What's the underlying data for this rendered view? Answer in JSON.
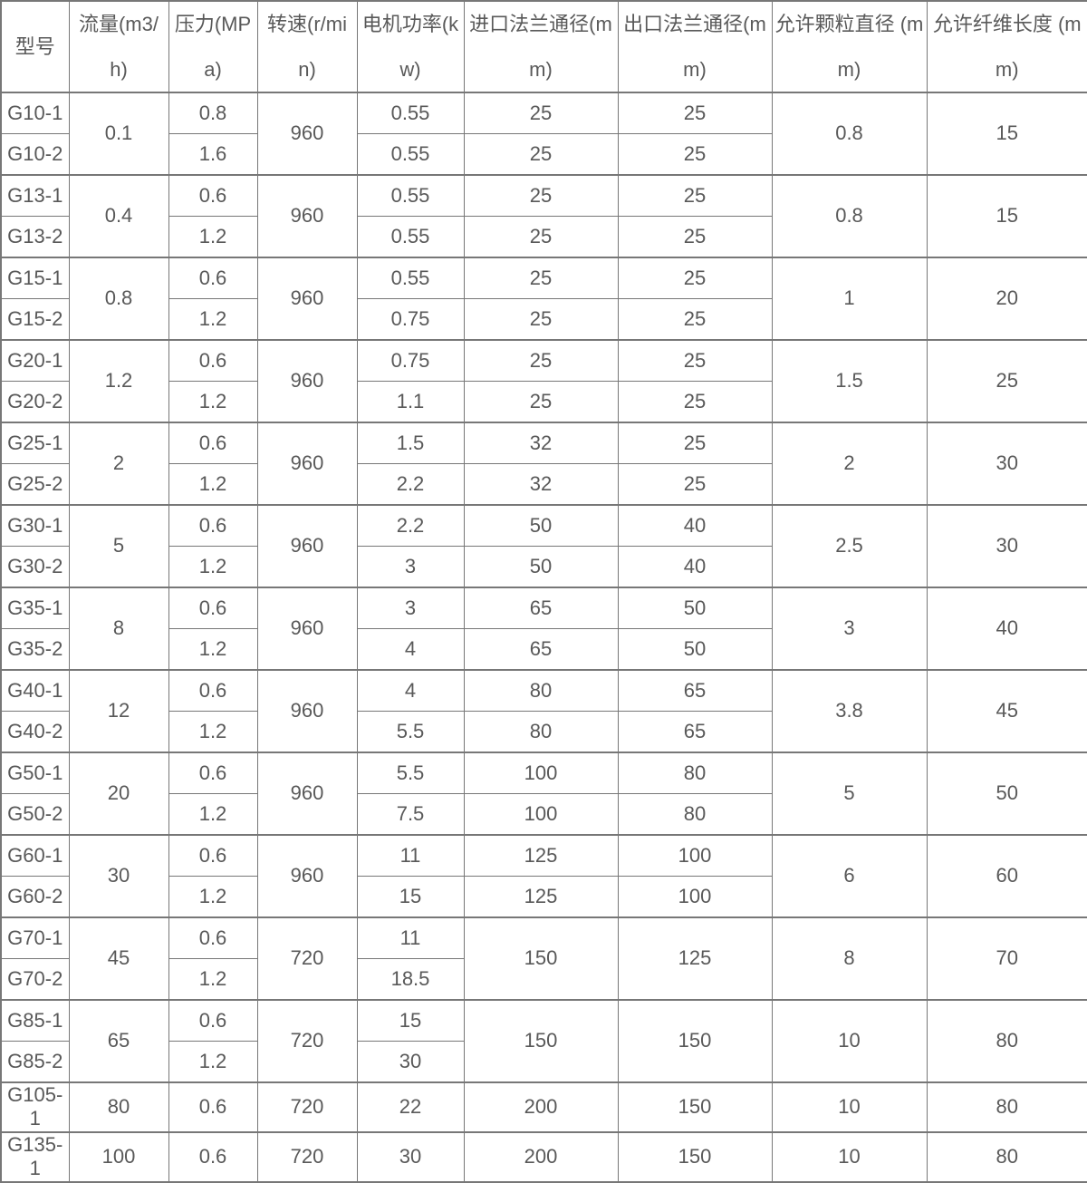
{
  "table": {
    "title": "pump-specification-table",
    "columns": [
      "型号",
      "流量(m3/h)",
      "压力(MPa)",
      "转速(r/min)",
      "电机功率(kw)",
      "进口法兰通径(mm)",
      "出口法兰通径(mm)",
      "允许颗粒直径 (mm)",
      "允许纤维长度 (mm)"
    ],
    "rows": [
      {
        "g": true,
        "cells": [
          {
            "t": "G10-1"
          },
          {
            "t": "0.1",
            "rs": 2
          },
          {
            "t": "0.8"
          },
          {
            "t": "960",
            "rs": 2
          },
          {
            "t": "0.55"
          },
          {
            "t": "25"
          },
          {
            "t": "25"
          },
          {
            "t": "0.8",
            "rs": 2
          },
          {
            "t": "15",
            "rs": 2
          }
        ]
      },
      {
        "g": false,
        "cells": [
          {
            "t": "G10-2"
          },
          {
            "t": "1.6"
          },
          {
            "t": "0.55"
          },
          {
            "t": "25"
          },
          {
            "t": "25"
          }
        ]
      },
      {
        "g": true,
        "cells": [
          {
            "t": "G13-1"
          },
          {
            "t": "0.4",
            "rs": 2
          },
          {
            "t": "0.6"
          },
          {
            "t": "960",
            "rs": 2
          },
          {
            "t": "0.55"
          },
          {
            "t": "25"
          },
          {
            "t": "25"
          },
          {
            "t": "0.8",
            "rs": 2
          },
          {
            "t": "15",
            "rs": 2
          }
        ]
      },
      {
        "g": false,
        "cells": [
          {
            "t": "G13-2"
          },
          {
            "t": "1.2"
          },
          {
            "t": "0.55"
          },
          {
            "t": "25"
          },
          {
            "t": "25"
          }
        ]
      },
      {
        "g": true,
        "cells": [
          {
            "t": "G15-1"
          },
          {
            "t": "0.8",
            "rs": 2
          },
          {
            "t": "0.6"
          },
          {
            "t": "960",
            "rs": 2
          },
          {
            "t": "0.55"
          },
          {
            "t": "25"
          },
          {
            "t": "25"
          },
          {
            "t": "1",
            "rs": 2
          },
          {
            "t": "20",
            "rs": 2
          }
        ]
      },
      {
        "g": false,
        "cells": [
          {
            "t": "G15-2"
          },
          {
            "t": "1.2"
          },
          {
            "t": "0.75"
          },
          {
            "t": "25"
          },
          {
            "t": "25"
          }
        ]
      },
      {
        "g": true,
        "cells": [
          {
            "t": "G20-1"
          },
          {
            "t": "1.2",
            "rs": 2
          },
          {
            "t": "0.6"
          },
          {
            "t": "960",
            "rs": 2
          },
          {
            "t": "0.75"
          },
          {
            "t": "25"
          },
          {
            "t": "25"
          },
          {
            "t": "1.5",
            "rs": 2
          },
          {
            "t": "25",
            "rs": 2
          }
        ]
      },
      {
        "g": false,
        "cells": [
          {
            "t": "G20-2"
          },
          {
            "t": "1.2"
          },
          {
            "t": "1.1"
          },
          {
            "t": "25"
          },
          {
            "t": "25"
          }
        ]
      },
      {
        "g": true,
        "cells": [
          {
            "t": "G25-1"
          },
          {
            "t": "2",
            "rs": 2
          },
          {
            "t": "0.6"
          },
          {
            "t": "960",
            "rs": 2
          },
          {
            "t": "1.5"
          },
          {
            "t": "32"
          },
          {
            "t": "25"
          },
          {
            "t": "2",
            "rs": 2
          },
          {
            "t": "30",
            "rs": 2
          }
        ]
      },
      {
        "g": false,
        "cells": [
          {
            "t": "G25-2"
          },
          {
            "t": "1.2"
          },
          {
            "t": "2.2"
          },
          {
            "t": "32"
          },
          {
            "t": "25"
          }
        ]
      },
      {
        "g": true,
        "cells": [
          {
            "t": "G30-1"
          },
          {
            "t": "5",
            "rs": 2
          },
          {
            "t": "0.6"
          },
          {
            "t": "960",
            "rs": 2
          },
          {
            "t": "2.2"
          },
          {
            "t": "50"
          },
          {
            "t": "40"
          },
          {
            "t": "2.5",
            "rs": 2
          },
          {
            "t": "30",
            "rs": 2
          }
        ]
      },
      {
        "g": false,
        "cells": [
          {
            "t": "G30-2"
          },
          {
            "t": "1.2"
          },
          {
            "t": "3"
          },
          {
            "t": "50"
          },
          {
            "t": "40"
          }
        ]
      },
      {
        "g": true,
        "cells": [
          {
            "t": "G35-1"
          },
          {
            "t": "8",
            "rs": 2
          },
          {
            "t": "0.6"
          },
          {
            "t": "960",
            "rs": 2
          },
          {
            "t": "3"
          },
          {
            "t": "65"
          },
          {
            "t": "50"
          },
          {
            "t": "3",
            "rs": 2
          },
          {
            "t": "40",
            "rs": 2
          }
        ]
      },
      {
        "g": false,
        "cells": [
          {
            "t": "G35-2"
          },
          {
            "t": "1.2"
          },
          {
            "t": "4"
          },
          {
            "t": "65"
          },
          {
            "t": "50"
          }
        ]
      },
      {
        "g": true,
        "cells": [
          {
            "t": "G40-1"
          },
          {
            "t": "12",
            "rs": 2
          },
          {
            "t": "0.6"
          },
          {
            "t": "960",
            "rs": 2
          },
          {
            "t": "4"
          },
          {
            "t": "80"
          },
          {
            "t": "65"
          },
          {
            "t": "3.8",
            "rs": 2
          },
          {
            "t": "45",
            "rs": 2
          }
        ]
      },
      {
        "g": false,
        "cells": [
          {
            "t": "G40-2"
          },
          {
            "t": "1.2"
          },
          {
            "t": "5.5"
          },
          {
            "t": "80"
          },
          {
            "t": "65"
          }
        ]
      },
      {
        "g": true,
        "cells": [
          {
            "t": "G50-1"
          },
          {
            "t": "20",
            "rs": 2
          },
          {
            "t": "0.6"
          },
          {
            "t": "960",
            "rs": 2
          },
          {
            "t": "5.5"
          },
          {
            "t": "100"
          },
          {
            "t": "80"
          },
          {
            "t": "5",
            "rs": 2
          },
          {
            "t": "50",
            "rs": 2
          }
        ]
      },
      {
        "g": false,
        "cells": [
          {
            "t": "G50-2"
          },
          {
            "t": "1.2"
          },
          {
            "t": "7.5"
          },
          {
            "t": "100"
          },
          {
            "t": "80"
          }
        ]
      },
      {
        "g": true,
        "cells": [
          {
            "t": "G60-1"
          },
          {
            "t": "30",
            "rs": 2
          },
          {
            "t": "0.6"
          },
          {
            "t": "960",
            "rs": 2
          },
          {
            "t": "11"
          },
          {
            "t": "125"
          },
          {
            "t": "100"
          },
          {
            "t": "6",
            "rs": 2
          },
          {
            "t": "60",
            "rs": 2
          }
        ]
      },
      {
        "g": false,
        "cells": [
          {
            "t": "G60-2"
          },
          {
            "t": "1.2"
          },
          {
            "t": "15"
          },
          {
            "t": "125"
          },
          {
            "t": "100"
          }
        ]
      },
      {
        "g": true,
        "cells": [
          {
            "t": "G70-1"
          },
          {
            "t": "45",
            "rs": 2
          },
          {
            "t": "0.6"
          },
          {
            "t": "720",
            "rs": 2
          },
          {
            "t": "11"
          },
          {
            "t": "150",
            "rs": 2
          },
          {
            "t": "125",
            "rs": 2
          },
          {
            "t": "8",
            "rs": 2
          },
          {
            "t": "70",
            "rs": 2
          }
        ]
      },
      {
        "g": false,
        "cells": [
          {
            "t": "G70-2"
          },
          {
            "t": "1.2"
          },
          {
            "t": "18.5"
          }
        ]
      },
      {
        "g": true,
        "cells": [
          {
            "t": "G85-1"
          },
          {
            "t": "65",
            "rs": 2
          },
          {
            "t": "0.6"
          },
          {
            "t": "720",
            "rs": 2
          },
          {
            "t": "15"
          },
          {
            "t": "150",
            "rs": 2
          },
          {
            "t": "150",
            "rs": 2
          },
          {
            "t": "10",
            "rs": 2
          },
          {
            "t": "80",
            "rs": 2
          }
        ]
      },
      {
        "g": false,
        "cells": [
          {
            "t": "G85-2"
          },
          {
            "t": "1.2"
          },
          {
            "t": "30"
          }
        ]
      },
      {
        "g": true,
        "cells": [
          {
            "t": "G105-1"
          },
          {
            "t": "80"
          },
          {
            "t": "0.6"
          },
          {
            "t": "720"
          },
          {
            "t": "22"
          },
          {
            "t": "200"
          },
          {
            "t": "150"
          },
          {
            "t": "10"
          },
          {
            "t": "80"
          }
        ]
      },
      {
        "g": true,
        "cells": [
          {
            "t": "G135-1"
          },
          {
            "t": "100"
          },
          {
            "t": "0.6"
          },
          {
            "t": "720"
          },
          {
            "t": "30"
          },
          {
            "t": "200"
          },
          {
            "t": "150"
          },
          {
            "t": "10"
          },
          {
            "t": "80"
          }
        ]
      }
    ]
  },
  "colors": {
    "text": "#595959",
    "border": "#777777",
    "background": "#ffffff"
  }
}
